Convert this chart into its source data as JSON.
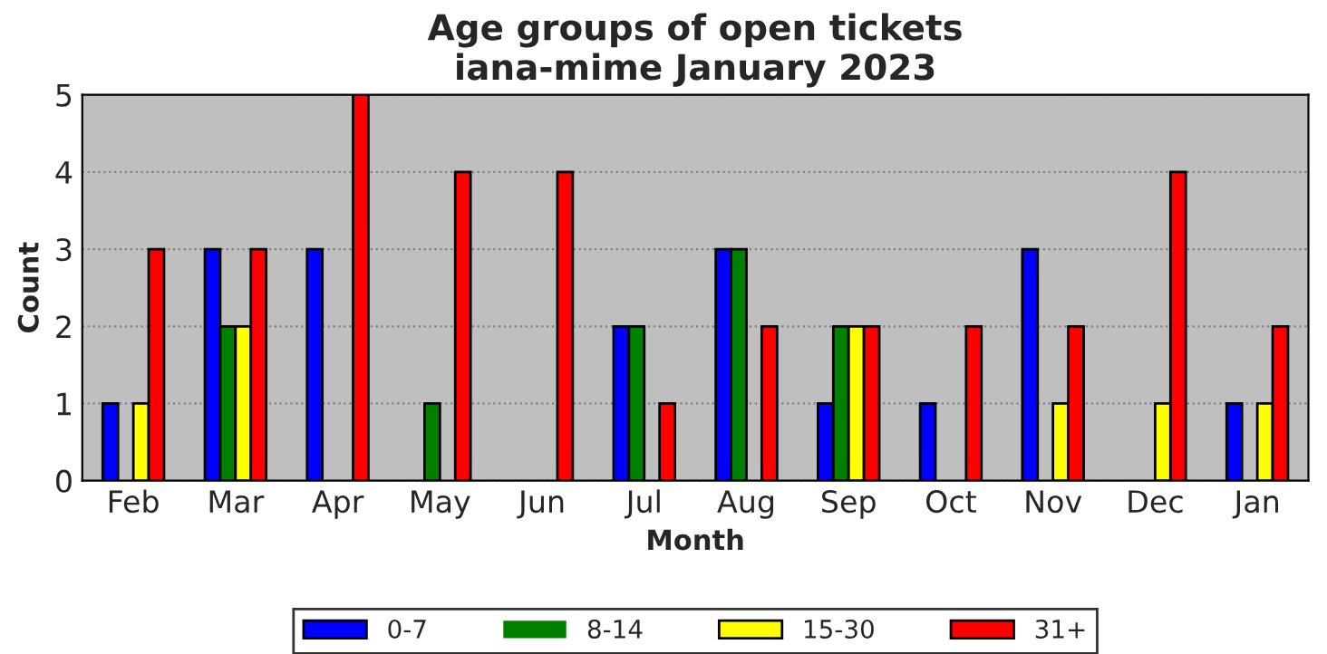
{
  "chart_data": {
    "type": "bar",
    "title": "Age groups of open tickets\niana-mime January 2023",
    "xlabel": "Month",
    "ylabel": "Count",
    "categories": [
      "Feb",
      "Mar",
      "Apr",
      "May",
      "Jun",
      "Jul",
      "Aug",
      "Sep",
      "Oct",
      "Nov",
      "Dec",
      "Jan"
    ],
    "series": [
      {
        "name": "0-7",
        "color": "#0000ff",
        "values": [
          1,
          3,
          3,
          0,
          0,
          2,
          3,
          1,
          1,
          3,
          0,
          1
        ]
      },
      {
        "name": "8-14",
        "color": "#008000",
        "values": [
          0,
          2,
          0,
          1,
          0,
          2,
          3,
          2,
          0,
          0,
          0,
          0
        ]
      },
      {
        "name": "15-30",
        "color": "#ffff00",
        "values": [
          1,
          2,
          0,
          0,
          0,
          0,
          0,
          2,
          0,
          1,
          1,
          1
        ]
      },
      {
        "name": "31+",
        "color": "#ff0000",
        "values": [
          3,
          3,
          5,
          4,
          4,
          1,
          2,
          2,
          2,
          2,
          4,
          2
        ]
      }
    ],
    "ylim": [
      0,
      5
    ],
    "yticks": [
      0,
      1,
      2,
      3,
      4,
      5
    ],
    "grid": "y",
    "legend": "bottom"
  }
}
